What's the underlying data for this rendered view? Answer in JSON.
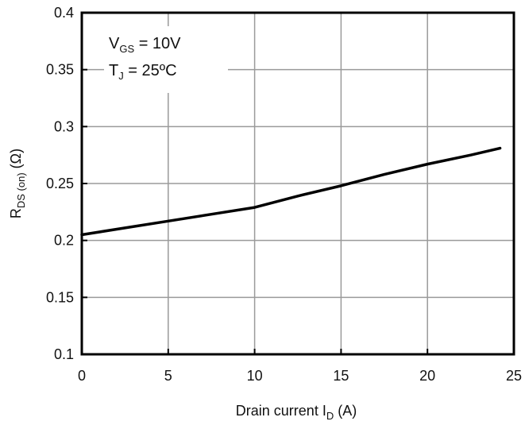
{
  "chart_data": {
    "type": "line",
    "title": "",
    "xlabel": {
      "main": "Drain current I",
      "subscript": "D",
      "unit": " (A)"
    },
    "ylabel": {
      "main": "R",
      "subscript": "DS (on)",
      "unit": " (Ω)"
    },
    "xlim": [
      0,
      25
    ],
    "ylim": [
      0.1,
      0.4
    ],
    "x_ticks": [
      0,
      5,
      10,
      15,
      20,
      25
    ],
    "x_tick_labels": [
      "0",
      "5",
      "10",
      "15",
      "20",
      "25"
    ],
    "y_ticks": [
      0.1,
      0.15,
      0.2,
      0.25,
      0.3,
      0.35,
      0.4
    ],
    "y_tick_labels": [
      "0.1",
      "0.15",
      "0.2",
      "0.25",
      "0.3",
      "0.35",
      "0.4"
    ],
    "grid": true,
    "annotations": [
      {
        "main": "V",
        "subscript": "GS",
        "rest": " = 10V"
      },
      {
        "main": "T",
        "subscript": "J",
        "rest": " = 25ºC"
      }
    ],
    "series": [
      {
        "x": [
          0,
          2.5,
          5,
          7.5,
          10,
          12.5,
          15,
          17.5,
          20,
          22.5,
          24.2
        ],
        "y": [
          0.205,
          0.211,
          0.217,
          0.223,
          0.229,
          0.239,
          0.248,
          0.258,
          0.267,
          0.275,
          0.281
        ]
      }
    ],
    "colors": {
      "line": "#000000",
      "grid": "#9a9a9a",
      "frame": "#000000",
      "background": "#ffffff"
    }
  }
}
